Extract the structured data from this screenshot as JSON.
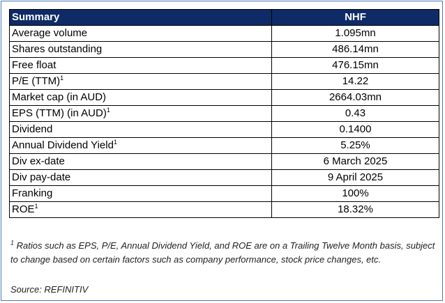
{
  "table": {
    "header": {
      "label": "Summary",
      "value": "NHF"
    },
    "rows": [
      {
        "label": "Average volume",
        "sup": "",
        "value": "1.095mn"
      },
      {
        "label": "Shares outstanding",
        "sup": "",
        "value": "486.14mn"
      },
      {
        "label": "Free float",
        "sup": "",
        "value": "476.15mn"
      },
      {
        "label": "P/E (TTM)",
        "sup": "1",
        "value": "14.22"
      },
      {
        "label": "Market cap (in AUD)",
        "sup": "",
        "value": "2664.03mn"
      },
      {
        "label": "EPS (TTM) (in AUD)",
        "sup": "1",
        "value": "0.43"
      },
      {
        "label": "Dividend",
        "sup": "",
        "value": "0.1400"
      },
      {
        "label": "Annual Dividend Yield",
        "sup": "1",
        "value": "5.25%"
      },
      {
        "label": "Div ex-date",
        "sup": "",
        "value": "6 March 2025"
      },
      {
        "label": "Div pay-date",
        "sup": "",
        "value": "9 April 2025"
      },
      {
        "label": "Franking",
        "sup": "",
        "value": "100%"
      },
      {
        "label": "ROE",
        "sup": "1",
        "value": "18.32%"
      }
    ]
  },
  "footnote": {
    "marker": "1",
    "text": "Ratios such as EPS, P/E, Annual Dividend Yield, and ROE are on a Trailing Twelve Month basis, subject to change based on certain factors such as company performance, stock price changes, etc."
  },
  "source": "Source: REFINITIV"
}
